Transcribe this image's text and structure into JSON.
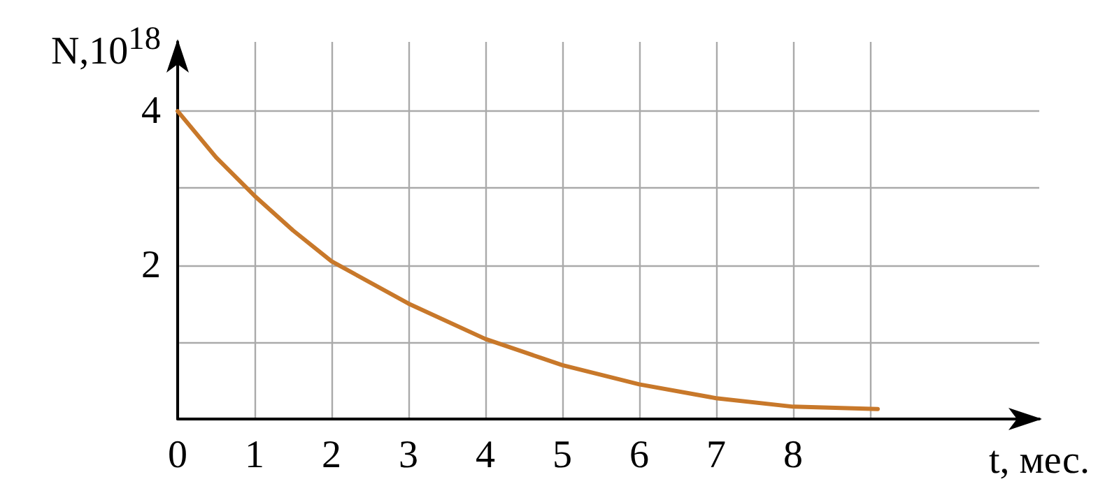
{
  "chart_data": {
    "type": "line",
    "xlabel": "t, мес.",
    "ylabel": "N,10$^{18}$",
    "x": [
      0,
      0.5,
      1,
      1.5,
      2,
      3,
      4,
      5,
      6,
      7,
      8,
      9.1
    ],
    "series": [
      {
        "color": "#c8782a",
        "values": [
          4,
          3.4,
          2.9,
          2.45,
          2.05,
          1.5,
          1.04,
          0.7,
          0.45,
          0.27,
          0.16,
          0.13
        ]
      }
    ],
    "xlim": [
      0,
      11.2
    ],
    "ylim": [
      0,
      4.9
    ],
    "xticks": [
      0,
      1,
      2,
      3,
      4,
      5,
      6,
      7,
      8,
      {
        "value": 9,
        "label": null
      }
    ],
    "yticks": [
      {
        "value": 0,
        "label": null
      },
      {
        "value": 1,
        "label": null
      },
      2,
      {
        "value": 3,
        "label": null
      },
      4
    ],
    "grid": true,
    "marker": "none",
    "line_style": "solid"
  }
}
